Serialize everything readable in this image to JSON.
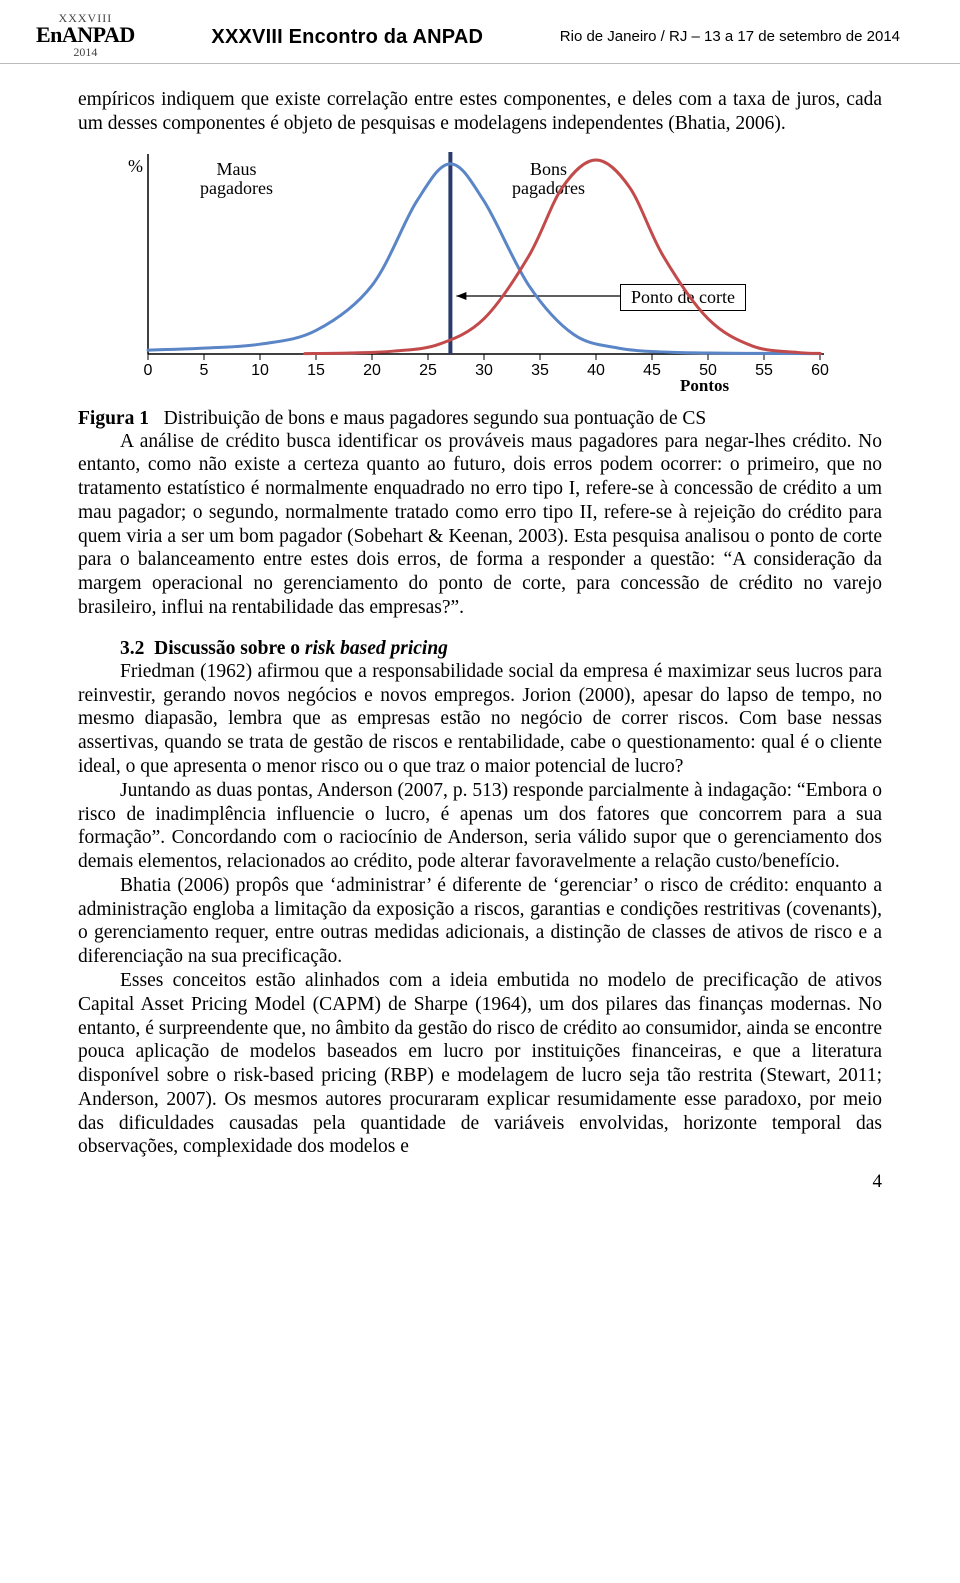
{
  "header": {
    "logo_roman": "XXXVIII",
    "logo_brand": "EnANPAD",
    "logo_year": "2014",
    "center": "XXXVIII Encontro da ANPAD",
    "right": "Rio de Janeiro / RJ – 13 a 17 de setembro de 2014"
  },
  "intro_para": "empíricos indiquem que existe correlação entre estes componentes, e deles com a taxa de juros, cada um desses componentes é objeto de pesquisas e modelagens independentes (Bhatia, 2006).",
  "chart": {
    "type": "line",
    "pct_label": "%",
    "label_maus": "Maus\npagadores",
    "label_bons": "Bons\npagadores",
    "cutoff_label": "Ponto de corte",
    "xaxis_title": "Pontos",
    "xticks": [
      0,
      5,
      10,
      15,
      20,
      25,
      30,
      35,
      40,
      45,
      50,
      55,
      60
    ],
    "xlim": [
      0,
      60
    ],
    "ylim": [
      0,
      1
    ],
    "series": [
      {
        "name": "maus",
        "color": "#5a85c6",
        "stroke_width": 3,
        "points": [
          [
            0,
            0.02
          ],
          [
            5,
            0.03
          ],
          [
            10,
            0.05
          ],
          [
            15,
            0.12
          ],
          [
            20,
            0.35
          ],
          [
            24,
            0.78
          ],
          [
            27,
            0.97
          ],
          [
            30,
            0.78
          ],
          [
            34,
            0.35
          ],
          [
            38,
            0.1
          ],
          [
            42,
            0.03
          ],
          [
            46,
            0.01
          ],
          [
            50,
            0.005
          ],
          [
            55,
            0.003
          ],
          [
            60,
            0.002
          ]
        ]
      },
      {
        "name": "bons",
        "color": "#c24a4a",
        "stroke_width": 3,
        "points": [
          [
            14,
            0.002
          ],
          [
            18,
            0.005
          ],
          [
            22,
            0.015
          ],
          [
            26,
            0.05
          ],
          [
            30,
            0.18
          ],
          [
            34,
            0.5
          ],
          [
            37,
            0.85
          ],
          [
            40,
            0.99
          ],
          [
            43,
            0.85
          ],
          [
            46,
            0.5
          ],
          [
            50,
            0.18
          ],
          [
            54,
            0.04
          ],
          [
            58,
            0.008
          ],
          [
            60,
            0.003
          ]
        ]
      }
    ],
    "cutoff_x": 27,
    "axis_color": "#000000",
    "background_color": "#ffffff",
    "fontsize_labels": 18,
    "fontsize_ticks": 16
  },
  "caption_label": "Figura 1",
  "caption_text": "Distribuição de bons e maus pagadores segundo sua pontuação de CS",
  "body1": "A análise de crédito busca identificar os prováveis maus pagadores para negar-lhes crédito. No entanto, como não existe a certeza quanto ao futuro, dois erros podem ocorrer: o primeiro, que no tratamento estatístico é normalmente enquadrado no erro tipo I, refere-se à concessão de crédito a um mau pagador; o segundo, normalmente tratado como erro tipo II, refere-se à rejeição do crédito para quem viria a ser um bom pagador (Sobehart & Keenan, 2003). Esta pesquisa analisou o ponto de corte para o balanceamento entre estes dois erros, de forma a responder a questão: “A consideração da margem operacional no gerenciamento do ponto de corte, para concessão de crédito no varejo brasileiro, influi na rentabilidade das empresas?”.",
  "section_heading_num": "3.2",
  "section_heading_pre": "Discussão sobre o ",
  "section_heading_em": "risk based pricing",
  "body2": "Friedman (1962) afirmou que a responsabilidade social da empresa é maximizar seus lucros para reinvestir, gerando novos negócios e novos empregos. Jorion (2000), apesar do lapso de tempo, no mesmo diapasão, lembra que as empresas estão no negócio de correr riscos. Com base nessas assertivas, quando se trata de gestão de riscos e rentabilidade, cabe o questionamento: qual é o cliente ideal, o que apresenta o menor risco ou o que traz o maior potencial de lucro?",
  "body3": "Juntando as duas pontas, Anderson (2007, p. 513) responde parcialmente à indagação: “Embora o risco de inadimplência influencie o lucro, é apenas um dos fatores que concorrem para a sua formação”. Concordando com o raciocínio de Anderson, seria válido supor que o gerenciamento dos demais elementos, relacionados ao crédito, pode alterar favoravelmente a relação custo/benefício.",
  "body4": "Bhatia (2006) propôs que ‘administrar’ é diferente de ‘gerenciar’ o risco de crédito: enquanto a administração engloba a limitação da exposição a riscos, garantias e condições restritivas (covenants), o gerenciamento requer, entre outras medidas adicionais, a distinção de classes de ativos de risco e a diferenciação na sua precificação.",
  "body5": "Esses conceitos estão alinhados com a ideia embutida no modelo de precificação de ativos Capital Asset Pricing Model (CAPM) de Sharpe (1964), um dos pilares das finanças modernas. No entanto, é surpreendente que, no âmbito da gestão do risco de crédito ao consumidor, ainda se encontre pouca aplicação de modelos baseados em lucro por instituições financeiras, e que a literatura disponível sobre o risk-based pricing (RBP) e modelagem de lucro seja tão restrita (Stewart, 2011; Anderson, 2007). Os mesmos autores procuraram explicar resumidamente esse paradoxo, por meio das dificuldades causadas pela quantidade de variáveis envolvidas, horizonte temporal das observações, complexidade dos modelos e",
  "page_number": "4"
}
